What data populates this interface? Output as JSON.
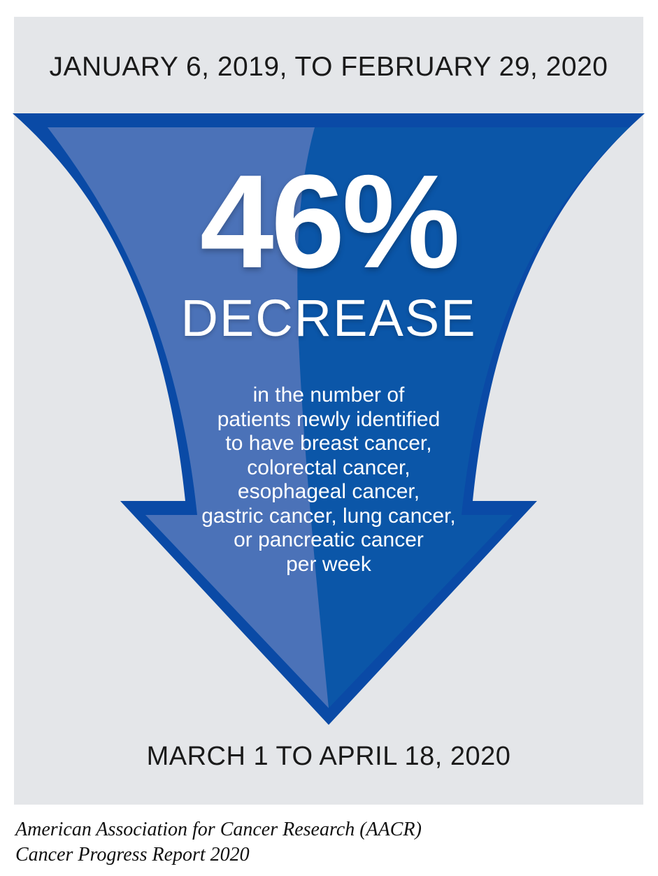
{
  "period_before": "JANUARY 6, 2019, TO FEBRUARY 29, 2020",
  "period_after": "MARCH 1 TO APRIL 18, 2020",
  "headline": {
    "value": "46%",
    "label": "DECREASE"
  },
  "description_lines": [
    "in the number of",
    "patients newly identified",
    "to have breast cancer,",
    "colorectal cancer,",
    "esophageal cancer,",
    "gastric cancer, lung cancer,",
    "or pancreatic cancer",
    "per week"
  ],
  "source_lines": [
    "American Association for Cancer Research (AACR)",
    "Cancer Progress Report 2020"
  ],
  "colors": {
    "panel_background": "#e4e6e9",
    "arrow_outer": "#0a4aa6",
    "arrow_dark": "#0b56a8",
    "arrow_light": "#4b72b8",
    "text_dark": "#1a1a1a",
    "text_light": "#ffffff"
  },
  "icons": {
    "arrow": "down-arrow-funnel-icon"
  }
}
